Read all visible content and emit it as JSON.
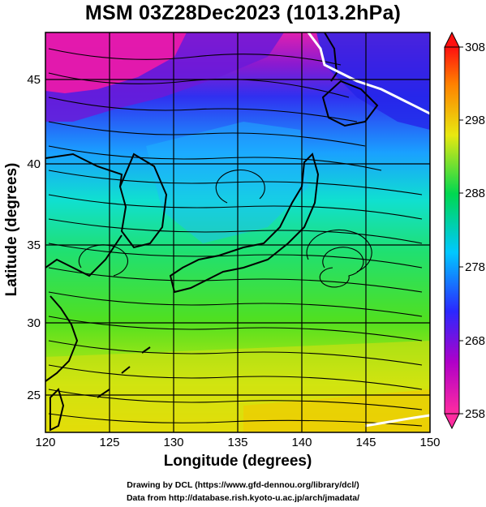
{
  "title": "MSM 03Z28Dec2023 (1013.2hPa)",
  "x_axis": {
    "label": "Longitude (degrees)",
    "ticks": [
      "120",
      "125",
      "130",
      "135",
      "140",
      "145",
      "150"
    ],
    "range": [
      120,
      150
    ]
  },
  "y_axis": {
    "label": "Latitude  (degrees)",
    "ticks": [
      "25",
      "30",
      "35",
      "40",
      "45"
    ],
    "range": [
      22.4,
      47.6
    ]
  },
  "colorbar": {
    "ticks": [
      "258",
      "268",
      "278",
      "288",
      "298",
      "308"
    ],
    "range": [
      258,
      308
    ],
    "colors": [
      "#ff2ca0",
      "#b000c8",
      "#2a28ff",
      "#00c8ff",
      "#00d850",
      "#e8e810",
      "#ff8000",
      "#ff1010"
    ]
  },
  "credits": {
    "line1": "Drawing by DCL (https://www.gfd-dennou.org/library/dcl/)",
    "line2": "Data from http://database.rish.kyoto-u.ac.jp/arch/jmadata/"
  }
}
